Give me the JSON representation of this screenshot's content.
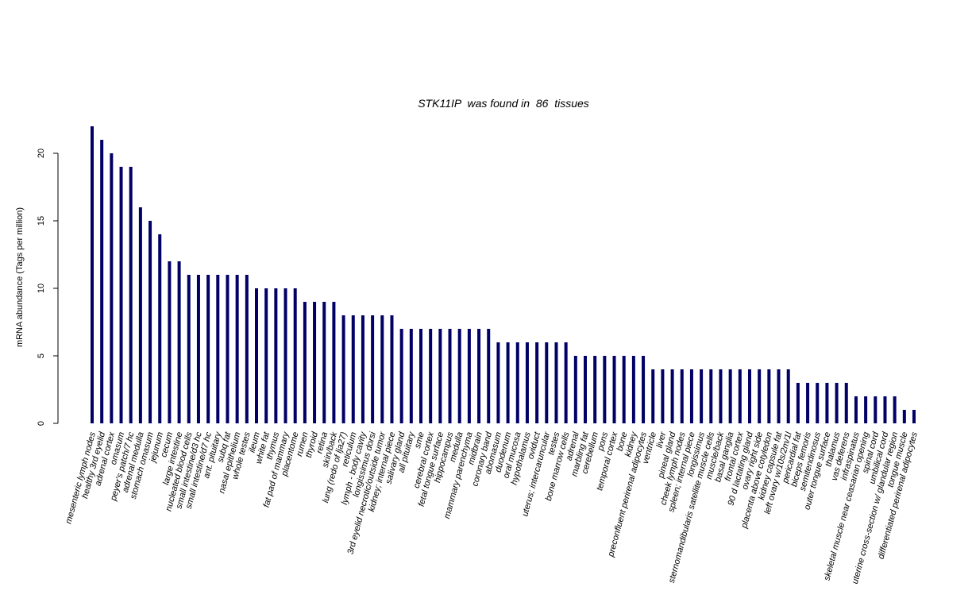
{
  "chart_data": {
    "type": "bar",
    "title": "STK11IP  was found in  86  tissues",
    "y_label": "mRNA abundance (Tags per million)",
    "color": "#000066",
    "ylim": [
      0,
      22
    ],
    "yticks": [
      0,
      5,
      10,
      15,
      20
    ],
    "categories": [
      "mesenteric lymph nodes",
      "healthy 3rd eyelid",
      "adrenal cortex",
      "omasum",
      "peyer's patch/7 hc",
      "adrenal medulla",
      "stomach omasum",
      "jejunum",
      "cecum",
      "large intestine",
      "nucleated blood cells",
      "small intestine/d3 hc",
      "small intestine/d7 hc",
      "ant. pituitary",
      "subq fat",
      "nasal epithelium",
      "whole testes",
      "ileum",
      "white fat",
      "thymus",
      "fat pad of mammary",
      "placentome",
      "rumen",
      "thyroid",
      "retina",
      "skin/back",
      "lung (redo of lja27)",
      "reticulum",
      "lymph - body cavity",
      "longissimus dorsi",
      "3rd eyelid necrotic/outside tumor",
      "kidney; internal piece",
      "salivary gland",
      "all pituitary",
      "sme",
      "cerebral cortex",
      "fetal tongue surface",
      "hippocampus",
      "medulla",
      "mammary parenchyma",
      "midbrain",
      "coronary band",
      "abomasum",
      "duodenum",
      "oral mucosa",
      "hypothalamus",
      "oviduct",
      "uterus; intercaruncular",
      "testes",
      "bone marrow cells",
      "adrenal",
      "marbling fat",
      "cerebellum",
      "pons",
      "temporal cortex",
      "bone",
      "kidney",
      "preconfluent perirenal adipocytes",
      "ventricle",
      "liver",
      "pineal gland",
      "cheek lymph nodes",
      "spleen; internal piece",
      "longissimus",
      "sternomandibularis satellite muscle cells",
      "muscle/back",
      "basal ganglia",
      "frontal cortex",
      "90 d lactating gland",
      "ovary right side",
      "placenta above cotyledon",
      "kidney capsule fat",
      "left ovary w/10s/2m/1l",
      "pericardial fat",
      "biceps femoris",
      "semitendinosus",
      "outer tongue surface",
      "thalamus",
      "vas deferens",
      "infraspinatus",
      "skeletal muscle near ceasarian opening",
      "spinal cord",
      "umbilical cord",
      "uterine cross-section w/ glandular region",
      "tongue muscle",
      "differentiated perirenal adipocytes"
    ],
    "values": [
      22,
      21,
      20,
      19,
      19,
      16,
      15,
      14,
      12,
      12,
      11,
      11,
      11,
      11,
      11,
      11,
      11,
      10,
      10,
      10,
      10,
      10,
      9,
      9,
      9,
      9,
      8,
      8,
      8,
      8,
      8,
      8,
      7,
      7,
      7,
      7,
      7,
      7,
      7,
      7,
      7,
      7,
      6,
      6,
      6,
      6,
      6,
      6,
      6,
      6,
      5,
      5,
      5,
      5,
      5,
      5,
      5,
      5,
      4,
      4,
      4,
      4,
      4,
      4,
      4,
      4,
      4,
      4,
      4,
      4,
      4,
      4,
      4,
      3,
      3,
      3,
      3,
      3,
      3,
      2,
      2,
      2,
      2,
      2,
      1,
      1
    ]
  }
}
